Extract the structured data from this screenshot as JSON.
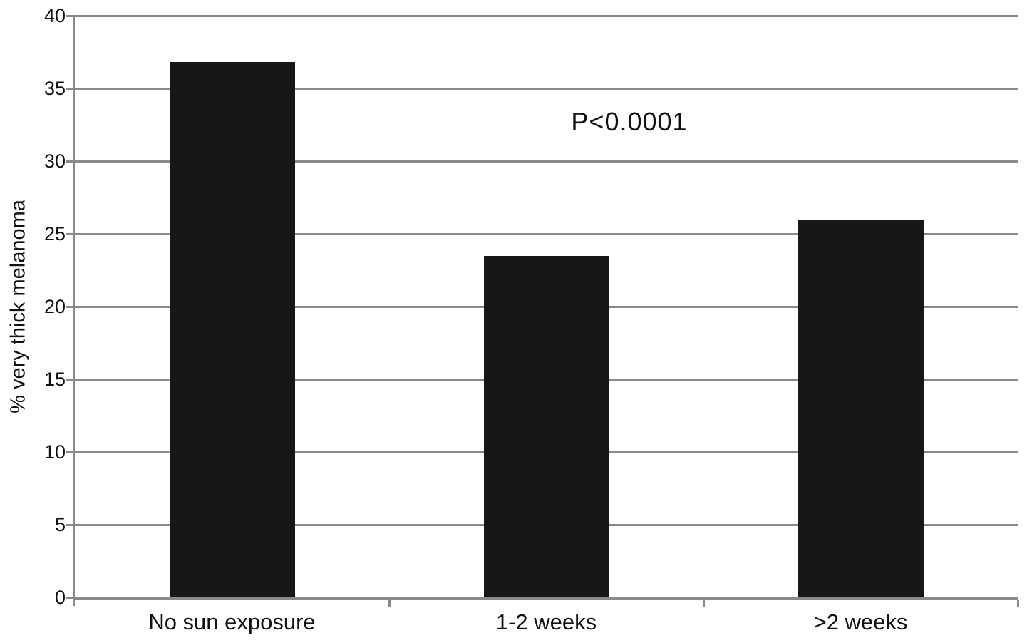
{
  "chart_data": {
    "type": "bar",
    "categories": [
      "No sun exposure",
      "1-2 weeks",
      ">2 weeks"
    ],
    "values": [
      36.8,
      23.5,
      26.0
    ],
    "title": "",
    "xlabel": "",
    "ylabel": "% very thick melanoma",
    "ylim": [
      0,
      40
    ],
    "ytick_step": 5,
    "yticks": [
      0,
      5,
      10,
      15,
      20,
      25,
      30,
      35,
      40
    ],
    "annotation": "P<0.0001",
    "grid": "horizontal",
    "legend": "none",
    "colors": {
      "bar": "#171717",
      "gridline": "#8a8a8a",
      "text": "#111111",
      "background": "#ffffff"
    }
  }
}
